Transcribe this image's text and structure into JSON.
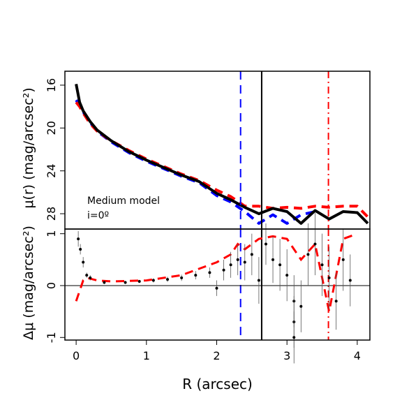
{
  "chart_data": [
    {
      "type": "line",
      "ylabel": "μ(r) (mag/arcsec²)",
      "annotations": [
        "Medium model",
        "i=0º"
      ],
      "x": [
        0,
        0.05,
        0.1,
        0.2,
        0.3,
        0.5,
        0.75,
        1.0,
        1.25,
        1.5,
        1.75,
        2.0,
        2.2,
        2.4,
        2.6,
        2.8,
        3.0,
        3.2,
        3.4,
        3.6,
        3.8,
        4.0,
        4.15
      ],
      "series": [
        {
          "color": "#0000ff",
          "style": "dashed",
          "values": [
            17.4,
            17.9,
            18.5,
            19.5,
            20.3,
            21.3,
            22.3,
            23.1,
            23.8,
            24.5,
            25.1,
            26.3,
            26.9,
            27.8,
            28.9,
            28.1,
            28.9,
            28.1,
            27.8,
            null,
            null,
            null,
            null
          ]
        },
        {
          "color": "#ff0000",
          "style": "dashed",
          "values": [
            17.6,
            18.0,
            18.6,
            19.6,
            20.3,
            21.2,
            22.1,
            22.9,
            23.6,
            24.3,
            24.9,
            25.8,
            26.4,
            27.3,
            27.3,
            27.5,
            27.4,
            27.5,
            27.3,
            27.4,
            27.3,
            27.3,
            28.3
          ]
        },
        {
          "color": "#000000",
          "style": "solid",
          "values": [
            15.9,
            17.6,
            18.4,
            19.4,
            20.2,
            21.2,
            22.2,
            23.0,
            23.7,
            24.4,
            25.0,
            26.1,
            26.7,
            27.4,
            28.0,
            27.5,
            27.8,
            28.9,
            27.7,
            28.5,
            27.8,
            27.9,
            28.9
          ]
        }
      ],
      "vlines": [
        {
          "value": 2.34,
          "color": "#0000ff",
          "style": "dashed"
        },
        {
          "value": 2.64,
          "color": "#000000",
          "style": "solid"
        },
        {
          "value": 3.59,
          "color": "#ff0000",
          "style": "dashdot"
        }
      ],
      "xlim": [
        -0.16,
        4.18
      ],
      "ylim": [
        29.43,
        14.7
      ],
      "yticks": [
        16,
        20,
        24,
        28
      ]
    },
    {
      "type": "scatter",
      "xlabel": "R (arcsec)",
      "ylabel": "Δμ (mag/arcsec²)",
      "series": [
        {
          "color": "#ff0000",
          "style": "dashed",
          "x": [
            0,
            0.1,
            0.15,
            0.3,
            0.5,
            1.0,
            1.5,
            1.8,
            2.0,
            2.2,
            2.3,
            2.4,
            2.6,
            2.8,
            3.0,
            3.2,
            3.4,
            3.6,
            3.8,
            4.0
          ],
          "values": [
            -0.3,
            0.1,
            0.15,
            0.1,
            0.08,
            0.1,
            0.2,
            0.35,
            0.45,
            0.6,
            0.8,
            0.7,
            0.9,
            0.95,
            0.9,
            0.5,
            0.8,
            -0.5,
            0.9,
            1.0
          ]
        },
        {
          "color": "#000000",
          "style": "points",
          "x": [
            0.03,
            0.06,
            0.1,
            0.15,
            0.2,
            0.4,
            0.7,
            0.9,
            1.1,
            1.3,
            1.5,
            1.7,
            1.9,
            2.0,
            2.1,
            2.2,
            2.3,
            2.4,
            2.5,
            2.6,
            2.7,
            2.8,
            2.9,
            3.0,
            3.1,
            3.1,
            3.1,
            3.2,
            3.3,
            3.4,
            3.5,
            3.6,
            3.7,
            3.8,
            3.9
          ],
          "values": [
            0.9,
            0.7,
            0.45,
            0.2,
            0.15,
            0.06,
            0.06,
            0.08,
            0.1,
            0.12,
            0.15,
            0.2,
            0.25,
            -0.05,
            0.3,
            0.4,
            0.5,
            0.45,
            0.6,
            0.1,
            0.8,
            0.5,
            0.4,
            0.2,
            -0.3,
            -0.7,
            -1.0,
            -0.4,
            0.6,
            0.8,
            0.4,
            0.15,
            -0.3,
            0.5,
            0.1
          ],
          "errors": [
            0.15,
            0.1,
            0.1,
            0.05,
            0.05,
            0.03,
            0.03,
            0.03,
            0.04,
            0.05,
            0.06,
            0.08,
            0.1,
            0.15,
            0.2,
            0.25,
            0.3,
            0.35,
            0.4,
            0.45,
            0.4,
            0.45,
            0.5,
            0.5,
            0.5,
            0.5,
            0.5,
            0.5,
            0.6,
            0.6,
            0.6,
            0.6,
            0.55,
            0.6,
            0.5
          ]
        }
      ],
      "hline": 0,
      "xlim": [
        -0.16,
        4.18
      ],
      "xticks": [
        0,
        1,
        2,
        3,
        4
      ],
      "ylim": [
        -1.05,
        1.09
      ],
      "yticks": [
        -1,
        0,
        1
      ]
    }
  ]
}
